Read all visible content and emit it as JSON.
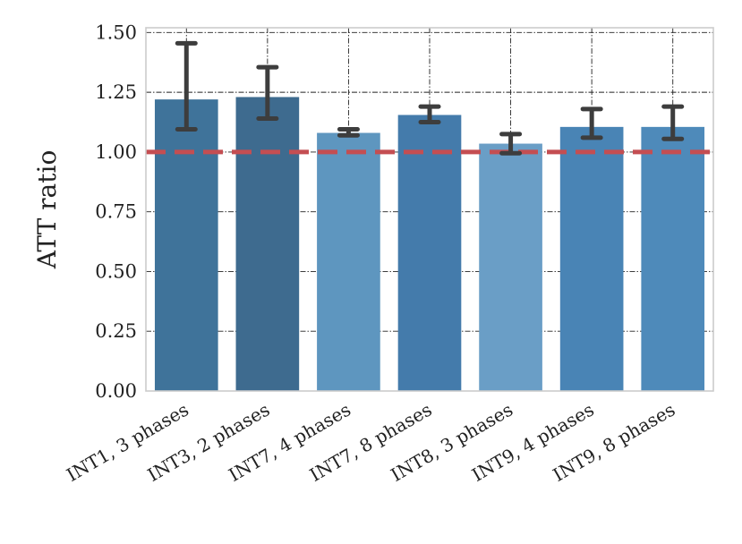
{
  "chart_data": {
    "type": "bar",
    "title": "",
    "xlabel": "",
    "ylabel": "ATT ratio",
    "ylim": [
      0,
      1.52
    ],
    "yticks": [
      "0.00",
      "0.25",
      "0.50",
      "0.75",
      "1.00",
      "1.25",
      "1.50"
    ],
    "ytick_values": [
      0,
      0.25,
      0.5,
      0.75,
      1.0,
      1.25,
      1.5
    ],
    "categories": [
      "INT1, 3 phases",
      "INT3, 2 phases",
      "INT7, 4 phases",
      "INT7, 8 phases",
      "INT8, 3 phases",
      "INT9, 4 phases",
      "INT9, 8 phases"
    ],
    "values": [
      1.22,
      1.23,
      1.08,
      1.155,
      1.035,
      1.105,
      1.105
    ],
    "error_low": [
      1.095,
      1.14,
      1.07,
      1.125,
      0.995,
      1.06,
      1.055
    ],
    "error_high": [
      1.455,
      1.355,
      1.095,
      1.19,
      1.075,
      1.18,
      1.19
    ],
    "bar_colors": [
      "#3f739a",
      "#3e6b8f",
      "#5e96bf",
      "#447bab",
      "#6a9ec6",
      "#4984b5",
      "#4e8aba"
    ],
    "reference_line": {
      "value": 1.0,
      "color": "#c44e52",
      "style": "dashed"
    },
    "grid": true,
    "legend": "none"
  }
}
